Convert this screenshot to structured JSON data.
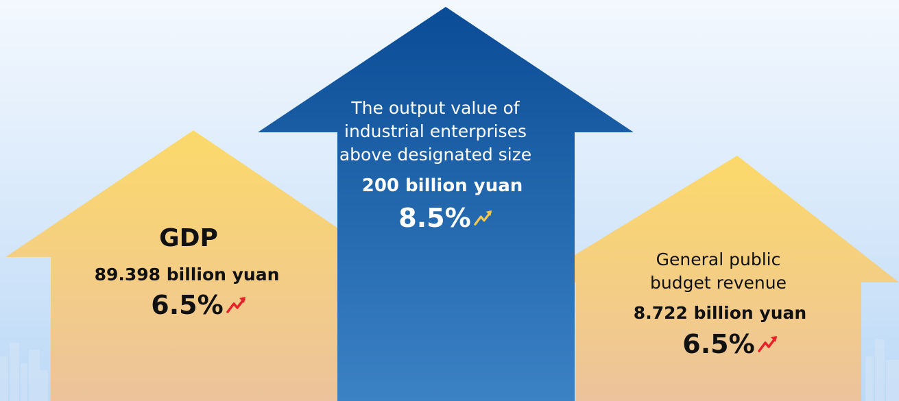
{
  "colors": {
    "yellow_top": "#fcd96a",
    "yellow_bottom": "#ecc39c",
    "blue_top": "#0a4c96",
    "blue_bottom": "#3b82c4",
    "up_red": "#e8202a",
    "up_gold": "#f6c84a",
    "text_dark": "#111111",
    "text_light": "#ffffff"
  },
  "arrows": {
    "left": {
      "label": "GDP",
      "value": "89.398 billion yuan",
      "growth": "6.5%",
      "icon": "trend-up-icon"
    },
    "center": {
      "label_line1": "The output value of",
      "label_line2": "industrial enterprises",
      "label_line3": "above designated size",
      "value": "200 billion yuan",
      "growth": "8.5%",
      "icon": "trend-up-icon"
    },
    "right": {
      "label_line1": "General public",
      "label_line2": "budget revenue",
      "value": "8.722 billion yuan",
      "growth": "6.5%",
      "icon": "trend-up-icon"
    }
  }
}
